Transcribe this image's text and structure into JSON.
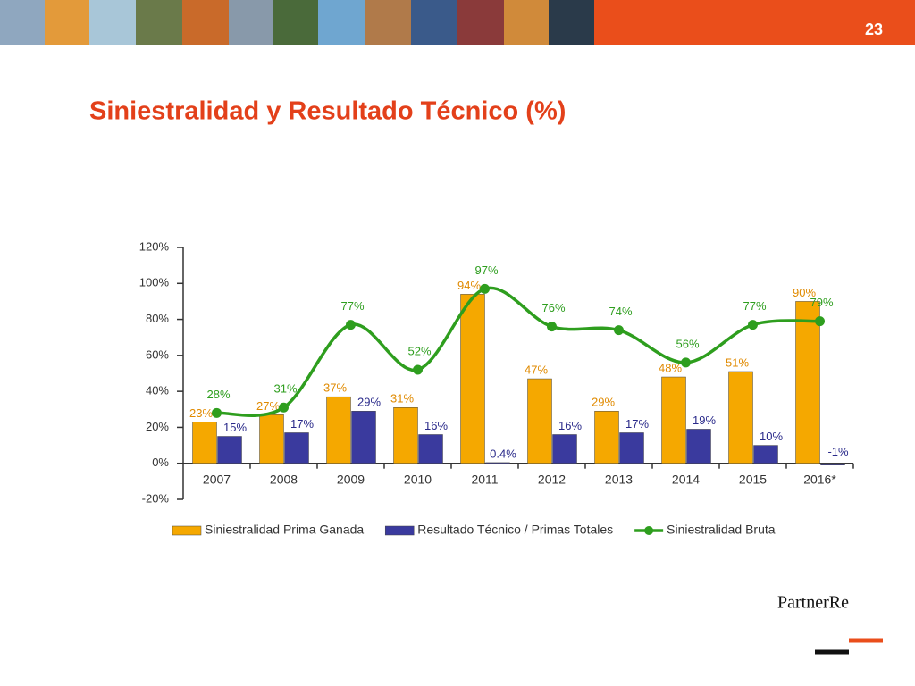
{
  "slide": {
    "page_number": "23",
    "logo": "PartnerRe"
  },
  "chart_data": {
    "type": "bar-line",
    "title": "Siniestralidad y Resultado Técnico (%)",
    "categories": [
      "2007",
      "2008",
      "2009",
      "2010",
      "2011",
      "2012",
      "2013",
      "2014",
      "2015",
      "2016*"
    ],
    "series": [
      {
        "name": "Siniestralidad Prima Ganada",
        "type": "bar",
        "color": "#f5a800",
        "values": [
          23,
          27,
          37,
          31,
          94,
          47,
          29,
          48,
          51,
          90
        ],
        "value_labels": [
          "23%",
          "27%",
          "37%",
          "31%",
          "94%",
          "47%",
          "29%",
          "48%",
          "51%",
          "90%"
        ]
      },
      {
        "name": "Resultado Técnico / Primas Totales",
        "type": "bar",
        "color": "#3a3a9e",
        "values": [
          15,
          17,
          29,
          16,
          0.4,
          16,
          17,
          19,
          10,
          -1
        ],
        "value_labels": [
          "15%",
          "17%",
          "29%",
          "16%",
          "0.4%",
          "16%",
          "17%",
          "19%",
          "10%",
          "-1%"
        ]
      },
      {
        "name": "Siniestralidad Bruta",
        "type": "line",
        "color": "#2e9e1e",
        "values": [
          28,
          31,
          77,
          52,
          97,
          76,
          74,
          56,
          77,
          79
        ],
        "value_labels": [
          "28%",
          "31%",
          "77%",
          "52%",
          "97%",
          "76%",
          "74%",
          "56%",
          "77%",
          "79%"
        ]
      }
    ],
    "ylim": [
      -20,
      120
    ],
    "yticks": [
      {
        "value": -20,
        "label": "-20%"
      },
      {
        "value": 0,
        "label": "0%"
      },
      {
        "value": 20,
        "label": "20%"
      },
      {
        "value": 40,
        "label": "40%"
      },
      {
        "value": 60,
        "label": "60%"
      },
      {
        "value": 80,
        "label": "80%"
      },
      {
        "value": 100,
        "label": "100%"
      },
      {
        "value": 120,
        "label": "120%"
      }
    ],
    "legend": "bottom"
  }
}
